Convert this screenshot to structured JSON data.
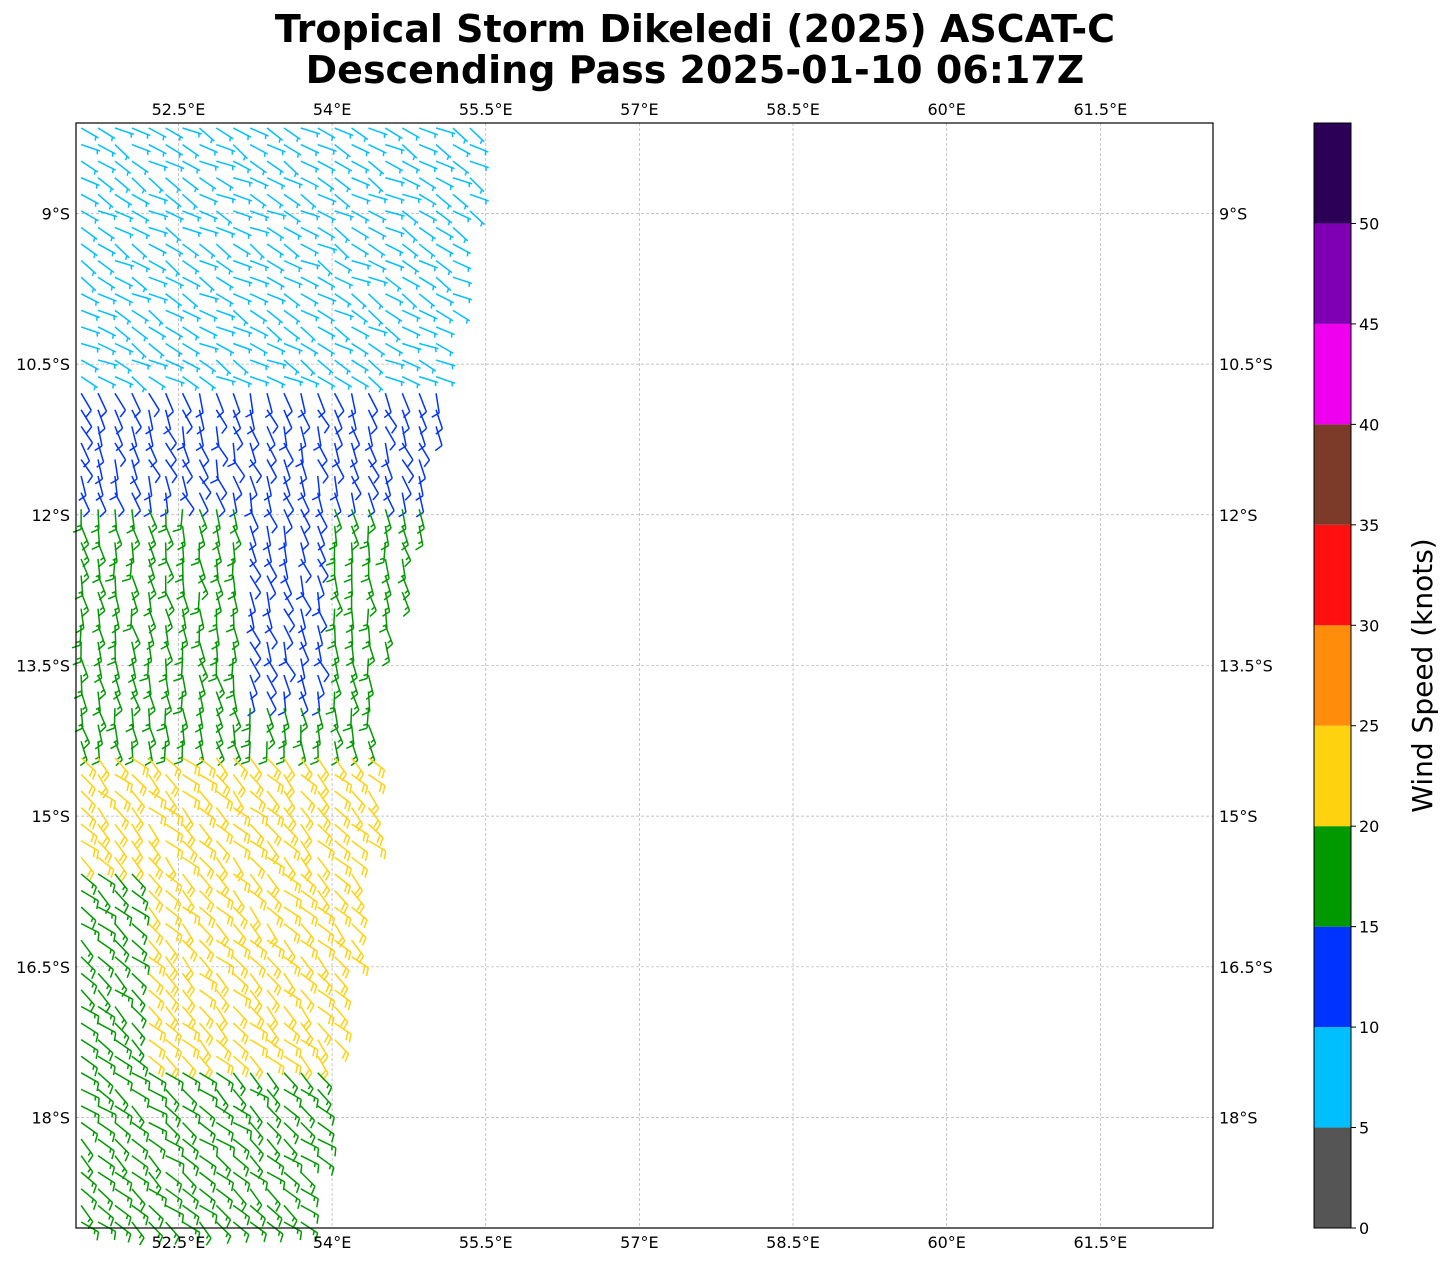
{
  "title_line1": "Tropical Storm Dikeledi (2025) ASCAT-C",
  "title_line2": "Descending Pass 2025-01-10 06:17Z",
  "map": {
    "lon_range": [
      51.5,
      62.6
    ],
    "lat_range": [
      -19.1,
      -8.1
    ],
    "lon_ticks": [
      "52.5°E",
      "54°E",
      "55.5°E",
      "57°E",
      "58.5°E",
      "60°E",
      "61.5°E"
    ],
    "lon_tick_values": [
      52.5,
      54,
      55.5,
      57,
      58.5,
      60,
      61.5
    ],
    "lat_ticks": [
      "9°S",
      "10.5°S",
      "12°S",
      "13.5°S",
      "15°S",
      "16.5°S",
      "18°S"
    ],
    "lat_tick_values": [
      -9,
      -10.5,
      -12,
      -13.5,
      -15,
      -16.5,
      -18
    ],
    "gridlines": true
  },
  "colorbar": {
    "label": "Wind Speed (knots)",
    "ticks": [
      "0",
      "5",
      "10",
      "15",
      "20",
      "25",
      "30",
      "35",
      "40",
      "45",
      "50"
    ],
    "bounds": [
      0,
      5,
      10,
      15,
      20,
      25,
      30,
      35,
      40,
      45,
      50,
      55
    ],
    "colors": [
      "#555555",
      "#00bfff",
      "#0033ff",
      "#009900",
      "#ffd20f",
      "#ff8c0a",
      "#ff0f0f",
      "#7b3b28",
      "#ef00ef",
      "#7f00b4",
      "#2d0058"
    ]
  },
  "chart_data": {
    "type": "wind_barbs",
    "description_units": "knots",
    "swath": {
      "east_edge": [
        [
          -8.1,
          55.5
        ],
        [
          -10.5,
          55.1
        ],
        [
          -12.0,
          54.9
        ],
        [
          -13.5,
          54.5
        ],
        [
          -15.0,
          54.4
        ],
        [
          -16.5,
          54.2
        ],
        [
          -18.0,
          53.9
        ],
        [
          -19.1,
          53.8
        ]
      ]
    },
    "wind_regions": [
      {
        "lat": [
          -8.1,
          -10.7
        ],
        "speed_kt": 8,
        "color": "#00bfff",
        "from_dir_deg": 120
      },
      {
        "lat": [
          -10.5,
          -12.0
        ],
        "speed_kt": 13,
        "color": "#0033ff",
        "from_dir_deg": 160
      },
      {
        "lat": [
          -11.8,
          -14.3
        ],
        "speed_kt": 17,
        "color": "#009900",
        "from_dir_deg": 170
      },
      {
        "lat": [
          -14.3,
          -17.5
        ],
        "speed_kt": 22,
        "color": "#ffd20f",
        "from_dir_deg": 135
      },
      {
        "lat": [
          -15.5,
          -19.1
        ],
        "speed_kt": 17,
        "color": "#009900",
        "from_dir_deg": 130
      }
    ],
    "max_observed_kt": 26
  }
}
